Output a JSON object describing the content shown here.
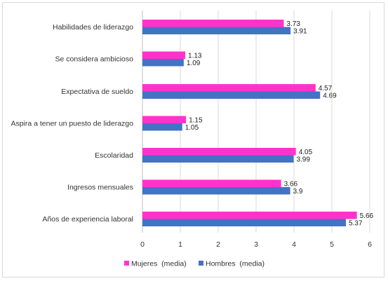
{
  "colors": {
    "mujeres": "#ff33cc",
    "hombres": "#4472c4",
    "grid": "#d9d9d9",
    "axis": "#bfbfbf"
  },
  "chart_data": {
    "type": "bar",
    "orientation": "horizontal",
    "title": "",
    "xlabel": "",
    "ylabel": "",
    "xlim": [
      0,
      6
    ],
    "xticks": [
      0,
      1,
      2,
      3,
      4,
      5,
      6
    ],
    "grid": true,
    "legend_position": "bottom",
    "categories": [
      "Habilidades de liderazgo",
      "Se considera ambicioso",
      "Expectativa de sueldo",
      "Aspira a tener un puesto de liderazgo",
      "Escolaridad",
      "Ingresos mensuales",
      "Años de experiencia laboral"
    ],
    "series": [
      {
        "name": "Mujeres  (media)",
        "values": [
          3.73,
          1.13,
          4.57,
          1.15,
          4.05,
          3.66,
          5.66
        ],
        "labels": [
          "3.73",
          "1.13",
          "4.57",
          "1.15",
          "4.05",
          "3.66",
          "5.66"
        ]
      },
      {
        "name": "Hombres  (media)",
        "values": [
          3.91,
          1.09,
          4.69,
          1.05,
          3.99,
          3.9,
          5.37
        ],
        "labels": [
          "3.91",
          "1.09",
          "4.69",
          "1.05",
          "3.99",
          "3.9",
          "5.37"
        ]
      }
    ]
  }
}
